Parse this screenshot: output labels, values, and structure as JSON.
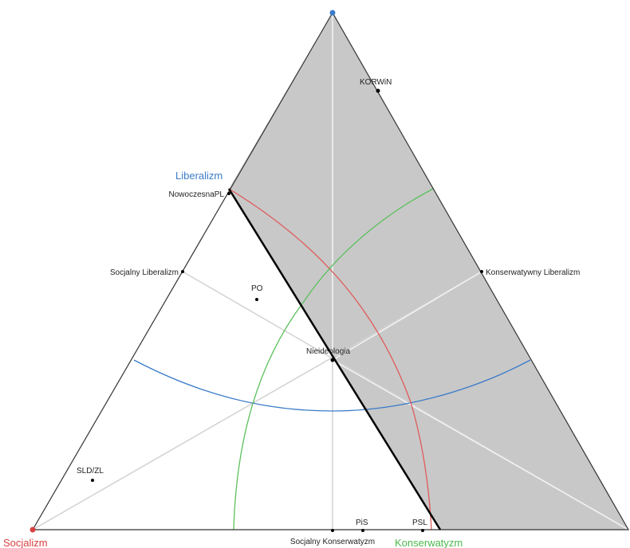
{
  "corners": {
    "top": {
      "label": "Liberalizm",
      "color": "#3b7cc9"
    },
    "left": {
      "label": "Socjalizm",
      "color": "#d94040"
    },
    "right": {
      "label": "Konserwatyzm",
      "color": "#4cb84c"
    }
  },
  "points": {
    "korwin": "KORWiN",
    "nowoczesna": "NowoczesnaPL",
    "soc_lib": "Socjalny Liberalizm",
    "kons_lib": "Konserwatywny Liberalizm",
    "po": "PO",
    "nieideologia": "Nieideologia",
    "sld": "SLD/ZL",
    "pis": "PiS",
    "psl": "PSL",
    "soc_kons": "Socjalny Konserwatyzm"
  },
  "colors": {
    "shaded_region": "#c8c8c8",
    "outline": "#333333",
    "divider": "#000000",
    "guide_lines": "#d2d2d2",
    "arc_blue": "#3b7cc9",
    "arc_red": "#e05a5a",
    "arc_green": "#5cc05c"
  }
}
